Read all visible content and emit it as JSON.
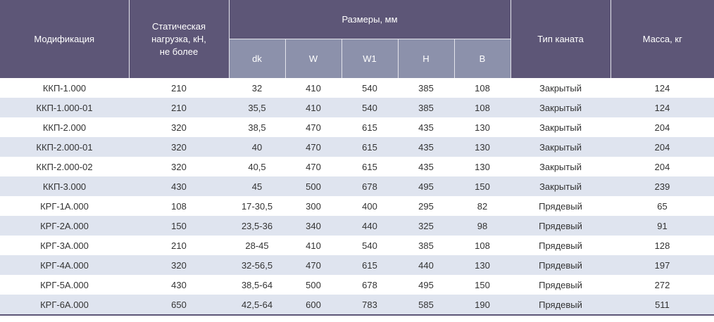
{
  "header": {
    "modification": "Модификация",
    "load_line1": "Статическая",
    "load_line2": "нагрузка, кН,",
    "load_line3": "не более",
    "sizes": "Размеры, мм",
    "dk": "dk",
    "w": "W",
    "w1": "W1",
    "h": "H",
    "b": "B",
    "rope_type": "Тип каната",
    "mass": "Масса, кг"
  },
  "rows": [
    [
      "ККП-1.000",
      "210",
      "32",
      "410",
      "540",
      "385",
      "108",
      "Закрытый",
      "124"
    ],
    [
      "ККП-1.000-01",
      "210",
      "35,5",
      "410",
      "540",
      "385",
      "108",
      "Закрытый",
      "124"
    ],
    [
      "ККП-2.000",
      "320",
      "38,5",
      "470",
      "615",
      "435",
      "130",
      "Закрытый",
      "204"
    ],
    [
      "ККП-2.000-01",
      "320",
      "40",
      "470",
      "615",
      "435",
      "130",
      "Закрытый",
      "204"
    ],
    [
      "ККП-2.000-02",
      "320",
      "40,5",
      "470",
      "615",
      "435",
      "130",
      "Закрытый",
      "204"
    ],
    [
      "ККП-3.000",
      "430",
      "45",
      "500",
      "678",
      "495",
      "150",
      "Закрытый",
      "239"
    ],
    [
      "КРГ-1А.000",
      "108",
      "17-30,5",
      "300",
      "400",
      "295",
      "82",
      "Прядевый",
      "65"
    ],
    [
      "КРГ-2А.000",
      "150",
      "23,5-36",
      "340",
      "440",
      "325",
      "98",
      "Прядевый",
      "91"
    ],
    [
      "КРГ-3А.000",
      "210",
      "28-45",
      "410",
      "540",
      "385",
      "108",
      "Прядевый",
      "128"
    ],
    [
      "КРГ-4А.000",
      "320",
      "32-56,5",
      "470",
      "615",
      "440",
      "130",
      "Прядевый",
      "197"
    ],
    [
      "КРГ-5А.000",
      "430",
      "38,5-64",
      "500",
      "678",
      "495",
      "150",
      "Прядевый",
      "272"
    ],
    [
      "КРГ-6А.000",
      "650",
      "42,5-64",
      "600",
      "783",
      "585",
      "190",
      "Прядевый",
      "511"
    ]
  ]
}
